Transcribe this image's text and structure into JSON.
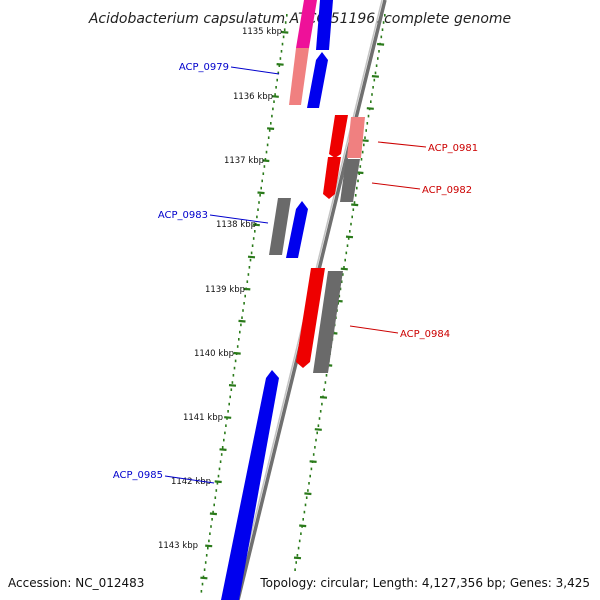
{
  "title": "Acidobacterium capsulatum ATCC 51196, complete genome",
  "footer": {
    "accession": "Accession: NC_012483",
    "summary": "Topology: circular; Length: 4,127,356 bp; Genes: 3,425"
  },
  "colors": {
    "backbone": "#8a8a8a",
    "ruler": "#2a7a1a",
    "forward_cds": "#0000ee",
    "reverse_cds": "#ee0000",
    "forward_gene": "#ee1199",
    "reverse_gene": "#f08080",
    "other": "#6a6a6a",
    "forward_label": "#0000cc",
    "reverse_label": "#cc0000"
  },
  "ticks": [
    "1135 kbp",
    "1136 kbp",
    "1137 kbp",
    "1138 kbp",
    "1139 kbp",
    "1140 kbp",
    "1141 kbp",
    "1142 kbp",
    "1143 kbp"
  ],
  "gene_labels": [
    {
      "name": "ACP_0979",
      "strand": "forward"
    },
    {
      "name": "ACP_0981",
      "strand": "reverse"
    },
    {
      "name": "ACP_0982",
      "strand": "reverse"
    },
    {
      "name": "ACP_0983",
      "strand": "forward"
    },
    {
      "name": "ACP_0984",
      "strand": "reverse"
    },
    {
      "name": "ACP_0985",
      "strand": "forward"
    }
  ]
}
